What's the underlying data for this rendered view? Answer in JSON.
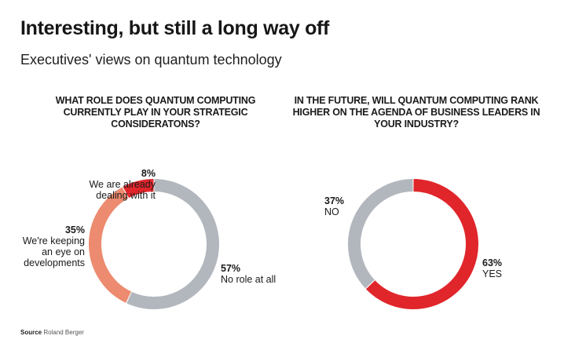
{
  "title": "Interesting, but still a long way off",
  "subtitle": "Executives' views on quantum technology",
  "source": {
    "label": "Source",
    "value": "Roland Berger"
  },
  "chart_data": [
    {
      "type": "pie",
      "variant": "donut",
      "title": "WHAT ROLE DOES QUANTUM COMPUTING CURRENTLY PLAY IN YOUR STRATEGIC CONSIDERATONS?",
      "slices": [
        {
          "label": "No role at all",
          "value": 57,
          "display": "57%",
          "color": "#b2b7be"
        },
        {
          "label": "We're keeping an eye on developments",
          "value": 35,
          "display": "35%",
          "color": "#ec8b6f"
        },
        {
          "label": "We are already dealing with it",
          "value": 8,
          "display": "8%",
          "color": "#e0262b"
        }
      ],
      "start": "12 o'clock",
      "direction": "clockwise"
    },
    {
      "type": "pie",
      "variant": "donut",
      "title": "IN THE FUTURE, WILL QUANTUM COMPUTING RANK HIGHER ON THE AGENDA OF BUSINESS LEADERS IN YOUR INDUSTRY?",
      "slices": [
        {
          "label": "YES",
          "value": 63,
          "display": "63%",
          "color": "#e0262b"
        },
        {
          "label": "NO",
          "value": 37,
          "display": "37%",
          "color": "#b2b7be"
        }
      ],
      "start": "12 o'clock",
      "direction": "clockwise"
    }
  ],
  "labels": {
    "c1": {
      "s0": {
        "pct": "57%",
        "line1": "No role at all"
      },
      "s1": {
        "pct": "35%",
        "line1": "We're keeping",
        "line2": "an eye on",
        "line3": "developments"
      },
      "s2": {
        "pct": "8%",
        "line1": "We are already",
        "line2": "dealing with it"
      }
    },
    "c2": {
      "s0": {
        "pct": "63%",
        "line1": "YES"
      },
      "s1": {
        "pct": "37%",
        "line1": "NO"
      }
    }
  }
}
